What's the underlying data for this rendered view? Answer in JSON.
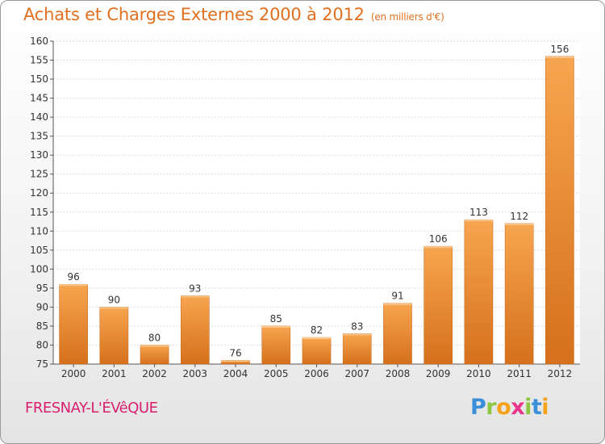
{
  "page": {
    "title": "Achats et Charges Externes 2000 à 2012",
    "subtitle": "(en milliers d'€)",
    "commune": "FRESNAY-L'ÉVêQUE",
    "logo": {
      "letters": [
        "P",
        "r",
        "o",
        "x",
        "i",
        "t",
        "i"
      ],
      "colors": [
        "#3a8fd8",
        "#8dc63f",
        "#f7a21b",
        "#e8348a",
        "#8dc63f",
        "#3a8fd8",
        "#f7a21b"
      ]
    }
  },
  "chart_data": {
    "type": "bar",
    "title": "Achats et Charges Externes 2000 à 2012",
    "subtitle": "(en milliers d'€)",
    "categories": [
      "2000",
      "2001",
      "2002",
      "2003",
      "2004",
      "2005",
      "2006",
      "2007",
      "2008",
      "2009",
      "2010",
      "2011",
      "2012"
    ],
    "values": [
      96,
      90,
      80,
      93,
      76,
      85,
      82,
      83,
      91,
      106,
      113,
      112,
      156
    ],
    "data_labels": [
      "96",
      "90",
      "80",
      "93",
      "76",
      "85",
      "82",
      "83",
      "91",
      "106",
      "113",
      "112",
      "156"
    ],
    "yticks": [
      "75",
      "80",
      "85",
      "90",
      "95",
      "100",
      "105",
      "110",
      "115",
      "120",
      "125",
      "130",
      "135",
      "140",
      "145",
      "150",
      "155",
      "160"
    ],
    "ylim": [
      75,
      160
    ],
    "grid": true,
    "colors": {
      "bar_light": "#f7a550",
      "bar_dark": "#d5701c",
      "text": "#e07020",
      "axis": "#333333"
    }
  }
}
